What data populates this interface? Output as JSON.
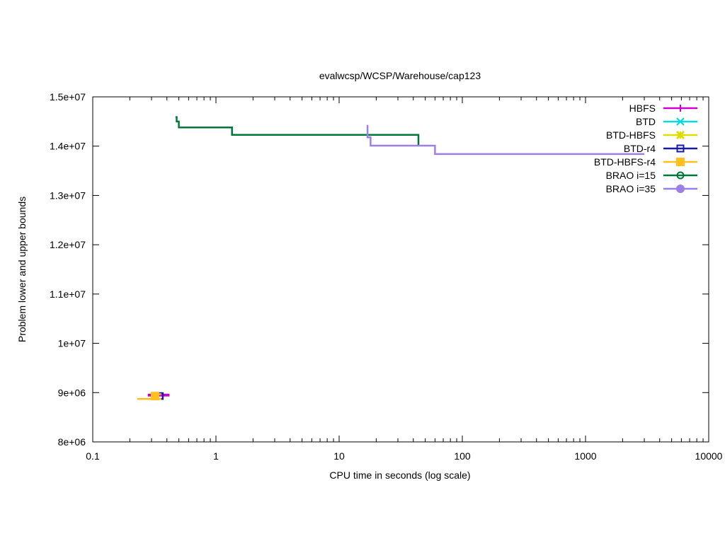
{
  "chart_data": {
    "type": "line",
    "title": "evalwcsp/WCSP/Warehouse/cap123",
    "xlabel": "CPU time in seconds (log scale)",
    "ylabel": "Problem lower and upper bounds",
    "x_scale": "log",
    "xlim": [
      0.1,
      10000
    ],
    "ylim": [
      8000000,
      15000000
    ],
    "x_ticks": [
      {
        "value": 0.1,
        "label": "0.1"
      },
      {
        "value": 1,
        "label": "1"
      },
      {
        "value": 10,
        "label": "10"
      },
      {
        "value": 100,
        "label": "100"
      },
      {
        "value": 1000,
        "label": "1000"
      },
      {
        "value": 10000,
        "label": "10000"
      }
    ],
    "y_ticks": [
      {
        "value": 8000000,
        "label": "8e+06"
      },
      {
        "value": 9000000,
        "label": "9e+06"
      },
      {
        "value": 10000000,
        "label": "1e+07"
      },
      {
        "value": 11000000,
        "label": "1.1e+07"
      },
      {
        "value": 12000000,
        "label": "1.2e+07"
      },
      {
        "value": 13000000,
        "label": "1.3e+07"
      },
      {
        "value": 14000000,
        "label": "1.4e+07"
      },
      {
        "value": 15000000,
        "label": "1.5e+07"
      }
    ],
    "grid": false,
    "legend_position": "top-right",
    "series": [
      {
        "name": "HBFS",
        "color": "#cc00cc",
        "marker": "plus",
        "lines": [
          {
            "x": [
              0.28,
              0.42
            ],
            "y": [
              8960000,
              8960000
            ]
          },
          {
            "x": [
              0.28,
              0.42
            ],
            "y": [
              8940000,
              8940000
            ]
          }
        ]
      },
      {
        "name": "BTD",
        "color": "#00dddd",
        "marker": "cross",
        "lines": []
      },
      {
        "name": "BTD-HBFS",
        "color": "#dddd00",
        "marker": "x-bold",
        "lines": []
      },
      {
        "name": "BTD-r4",
        "color": "#1a1aaa",
        "marker": "open-square",
        "lines": [
          {
            "x": [
              0.34,
              0.37,
              0.37,
              0.34
            ],
            "y": [
              8990000,
              8990000,
              8870000,
              8870000
            ]
          }
        ]
      },
      {
        "name": "BTD-HBFS-r4",
        "color": "#ffc020",
        "marker": "filled-square",
        "lines": [
          {
            "x": [
              0.3,
              0.36
            ],
            "y": [
              8970000,
              8970000
            ]
          },
          {
            "x": [
              0.23,
              0.36
            ],
            "y": [
              8870000,
              8870000
            ]
          }
        ]
      },
      {
        "name": "BRAO i=15",
        "color": "#00773a",
        "marker": "open-circle",
        "lines": [
          {
            "x": [
              0.47,
              0.48,
              0.48,
              0.5,
              0.5,
              1.35,
              1.35,
              44,
              44
            ],
            "y": [
              14590000,
              14590000,
              14500000,
              14500000,
              14380000,
              14380000,
              14230000,
              14230000,
              14020000
            ]
          }
        ]
      },
      {
        "name": "BRAO i=35",
        "color": "#9d7fe8",
        "marker": "filled-circle",
        "lines": [
          {
            "x": [
              17,
              17,
              18,
              18,
              60,
              60,
              3000
            ],
            "y": [
              14430000,
              14180000,
              14180000,
              14010000,
              14010000,
              13840000,
              13840000
            ]
          }
        ]
      }
    ]
  }
}
